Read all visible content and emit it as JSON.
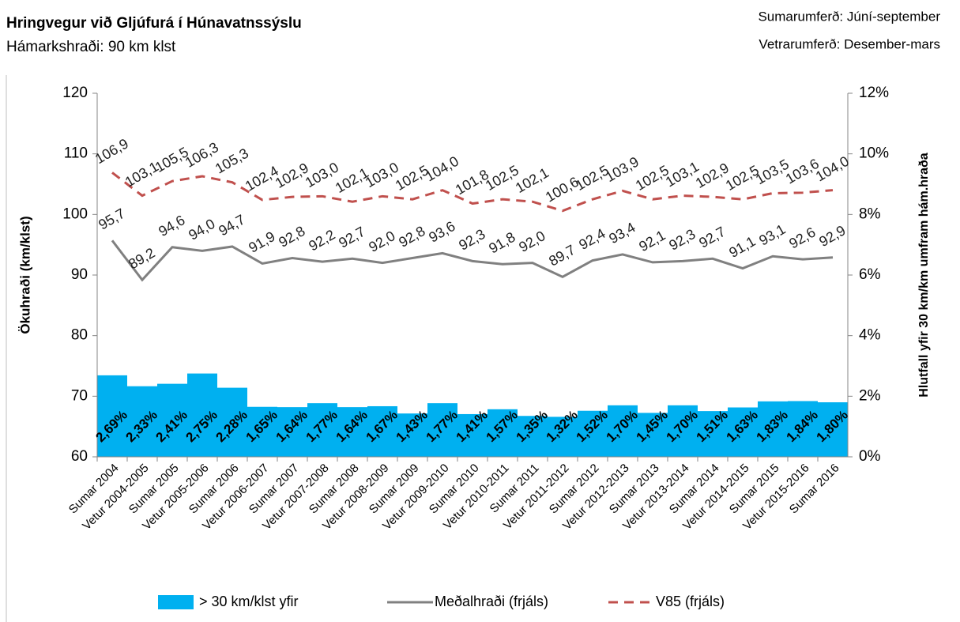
{
  "chart_data": {
    "type": "combo",
    "title": "Hringvegur við Gljúfurá í Húnavatnssýslu",
    "subtitle": "Hámarkshraði: 90 km klst",
    "notes": [
      "Sumarumferð:  Júní-september",
      "Vetrarumferð:  Desember-mars"
    ],
    "y_label": "Ökuhraði (km/klst)",
    "y2_label": "Hlutfall yfir 30 km/km umfram hám.hraða",
    "categories": [
      "Sumar 2004",
      "Vetur 2004-2005",
      "Sumar 2005",
      "Vetur 2005-2006",
      "Sumar 2006",
      "Vetur 2006-2007",
      "Sumar 2007",
      "Vetur 2007-2008",
      "Sumar 2008",
      "Vetur 2008-2009",
      "Sumar 2009",
      "Vetur 2009-2010",
      "Sumar 2010",
      "Vetur 2010-2011",
      "Sumar 2011",
      "Vetur 2011-2012",
      "Sumar 2012",
      "Vetur 2012-2013",
      "Sumar 2013",
      "Vetur 2013-2014",
      "Sumar 2014",
      "Vetur 2014-2015",
      "Sumar 2015",
      "Vetur 2015-2016",
      "Sumar 2016"
    ],
    "ylim": [
      60,
      120
    ],
    "yticks": [
      60,
      70,
      80,
      90,
      100,
      110,
      120
    ],
    "y2lim": [
      0,
      12
    ],
    "y2ticks": [
      {
        "value": 0,
        "label": "0%"
      },
      {
        "value": 2,
        "label": "2%"
      },
      {
        "value": 4,
        "label": "4%"
      },
      {
        "value": 6,
        "label": "6%"
      },
      {
        "value": 8,
        "label": "8%"
      },
      {
        "value": 10,
        "label": "10%"
      },
      {
        "value": 12,
        "label": "12%"
      }
    ],
    "series": [
      {
        "name": "> 30 km/klst yfir",
        "type": "bar",
        "axis": "y2",
        "color": "#00b0f0",
        "values": [
          2.69,
          2.33,
          2.41,
          2.75,
          2.28,
          1.65,
          1.64,
          1.77,
          1.64,
          1.67,
          1.43,
          1.77,
          1.41,
          1.57,
          1.35,
          1.32,
          1.52,
          1.7,
          1.45,
          1.7,
          1.51,
          1.63,
          1.83,
          1.84,
          1.8
        ],
        "value_labels": [
          "2,69%",
          "2,33%",
          "2,41%",
          "2,75%",
          "2,28%",
          "1,65%",
          "1,64%",
          "1,77%",
          "1,64%",
          "1,67%",
          "1,43%",
          "1,77%",
          "1,41%",
          "1,57%",
          "1,35%",
          "1,32%",
          "1,52%",
          "1,70%",
          "1,45%",
          "1,70%",
          "1,51%",
          "1,63%",
          "1,83%",
          "1,84%",
          "1,80%"
        ]
      },
      {
        "name": "Meðalhraði (frjáls)",
        "type": "line",
        "color": "#808080",
        "dashed": false,
        "values": [
          95.7,
          89.2,
          94.6,
          94.0,
          94.7,
          91.9,
          92.8,
          92.2,
          92.7,
          92.0,
          92.8,
          93.6,
          92.3,
          91.8,
          92.0,
          89.7,
          92.4,
          93.4,
          92.1,
          92.3,
          92.7,
          91.1,
          93.1,
          92.6,
          92.9
        ],
        "value_labels": [
          "95,7",
          "89,2",
          "94,6",
          "94,0",
          "94,7",
          "91,9",
          "92,8",
          "92,2",
          "92,7",
          "92,0",
          "92,8",
          "93,6",
          "92,3",
          "91,8",
          "92,0",
          "89,7",
          "92,4",
          "93,4",
          "92,1",
          "92,3",
          "92,7",
          "91,1",
          "93,1",
          "92,6",
          "92,9"
        ]
      },
      {
        "name": "V85 (frjáls)",
        "type": "line",
        "color": "#c0504d",
        "dashed": true,
        "values": [
          106.9,
          103.1,
          105.5,
          106.3,
          105.3,
          102.4,
          102.9,
          103.0,
          102.1,
          103.0,
          102.5,
          104.0,
          101.8,
          102.5,
          102.1,
          100.6,
          102.5,
          103.9,
          102.5,
          103.1,
          102.9,
          102.5,
          103.5,
          103.6,
          104.0
        ],
        "value_labels": [
          "106,9",
          "103,1",
          "105,5",
          "106,3",
          "105,3",
          "102,4",
          "102,9",
          "103,0",
          "102,1",
          "103,0",
          "102,5",
          "104,0",
          "101,8",
          "102,5",
          "102,1",
          "100,6",
          "102,5",
          "103,9",
          "102,5",
          "103,1",
          "102,9",
          "102,5",
          "103,5",
          "103,6",
          "104,0"
        ]
      }
    ]
  }
}
